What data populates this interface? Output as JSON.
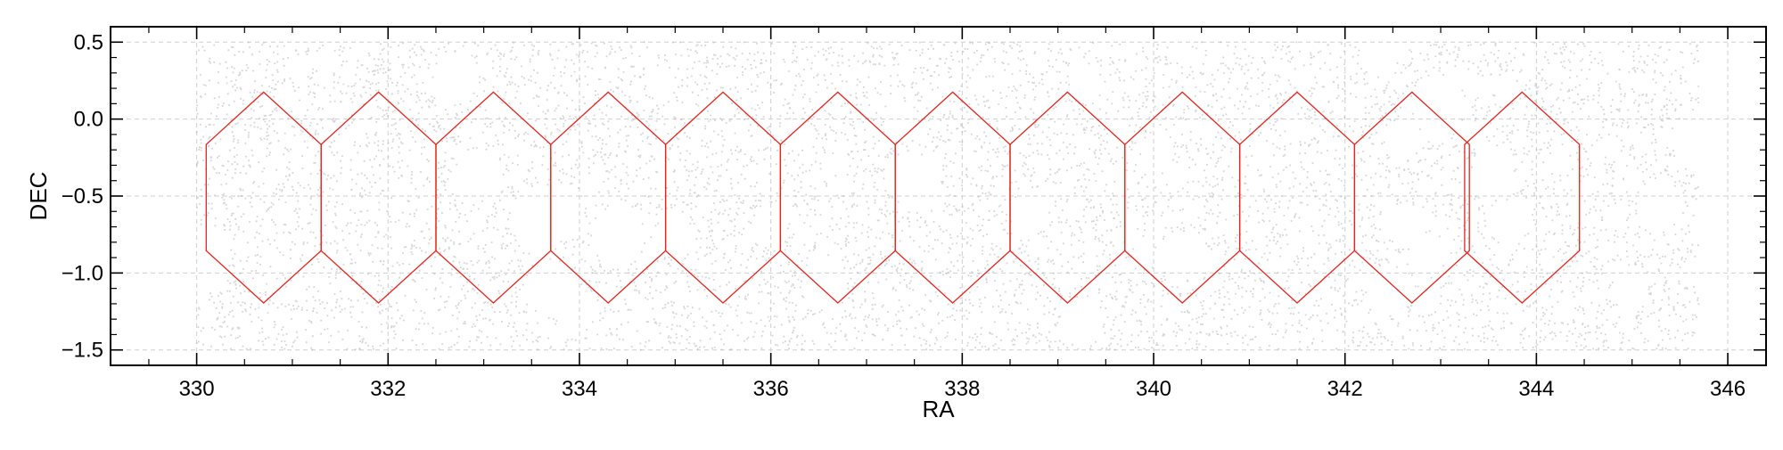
{
  "chart_data": {
    "type": "scatter",
    "title": "",
    "xlabel": "RA",
    "ylabel": "DEC",
    "xlim": [
      329.1,
      346.4
    ],
    "ylim": [
      -1.6,
      0.6
    ],
    "x_ticks": [
      330,
      332,
      334,
      336,
      338,
      340,
      342,
      344,
      346
    ],
    "x_tick_labels": [
      "330",
      "332",
      "334",
      "336",
      "338",
      "340",
      "342",
      "344",
      "346"
    ],
    "y_ticks": [
      0.5,
      0.0,
      -0.5,
      -1.0,
      -1.5
    ],
    "y_tick_labels": [
      "0.5",
      "0.0",
      "−0.5",
      "−1.0",
      "−1.5"
    ],
    "grid": true,
    "grid_style": "dashed",
    "background_points": {
      "name": "",
      "color": "#b4b4b4",
      "distribution": "uniform field with small voids",
      "ra_range": [
        330.0,
        345.7
      ],
      "dec_range": [
        -1.5,
        0.5
      ],
      "approx_count": 9000
    },
    "hexagons": {
      "color": "#e8231a",
      "fill": "none",
      "centers_ra": [
        330.7,
        331.9,
        333.1,
        334.3,
        335.5,
        336.7,
        337.9,
        339.1,
        340.3,
        341.5,
        342.7,
        343.85
      ],
      "center_dec": -0.51,
      "half_width_ra": 0.6,
      "vertex_dec_offset": 0.685,
      "shoulder_dec_offset": 0.345
    }
  }
}
